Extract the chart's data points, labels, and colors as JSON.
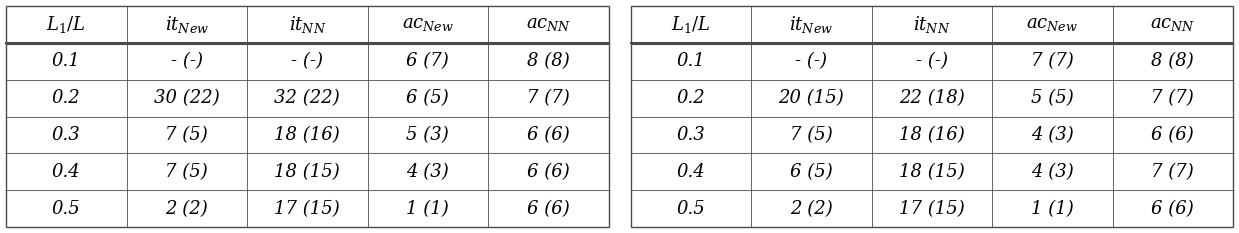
{
  "table1": {
    "headers": [
      "$L_1/L$",
      "$it_{New}$",
      "$it_{NN}$",
      "$ac_{New}$",
      "$ac_{NN}$"
    ],
    "rows": [
      [
        "0.1",
        "- (-)",
        "- (-)",
        "6 (7)",
        "8 (8)"
      ],
      [
        "0.2",
        "30 (22)",
        "32 (22)",
        "6 (5)",
        "7 (7)"
      ],
      [
        "0.3",
        "7 (5)",
        "18 (16)",
        "5 (3)",
        "6 (6)"
      ],
      [
        "0.4",
        "7 (5)",
        "18 (15)",
        "4 (3)",
        "6 (6)"
      ],
      [
        "0.5",
        "2 (2)",
        "17 (15)",
        "1 (1)",
        "6 (6)"
      ]
    ]
  },
  "table2": {
    "headers": [
      "$L_1/L$",
      "$it_{New}$",
      "$it_{NN}$",
      "$ac_{New}$",
      "$ac_{NN}$"
    ],
    "rows": [
      [
        "0.1",
        "- (-)",
        "- (-)",
        "7 (7)",
        "8 (8)"
      ],
      [
        "0.2",
        "20 (15)",
        "22 (18)",
        "5 (5)",
        "7 (7)"
      ],
      [
        "0.3",
        "7 (5)",
        "18 (16)",
        "4 (3)",
        "6 (6)"
      ],
      [
        "0.4",
        "6 (5)",
        "18 (15)",
        "4 (3)",
        "7 (7)"
      ],
      [
        "0.5",
        "2 (2)",
        "17 (15)",
        "1 (1)",
        "6 (6)"
      ]
    ]
  },
  "fontsize": 13,
  "header_fontsize": 13,
  "bg_color": "#ffffff",
  "border_color": "#4a4a4a",
  "text_color": "#000000",
  "fig_width": 12.39,
  "fig_height": 2.33,
  "dpi": 100
}
